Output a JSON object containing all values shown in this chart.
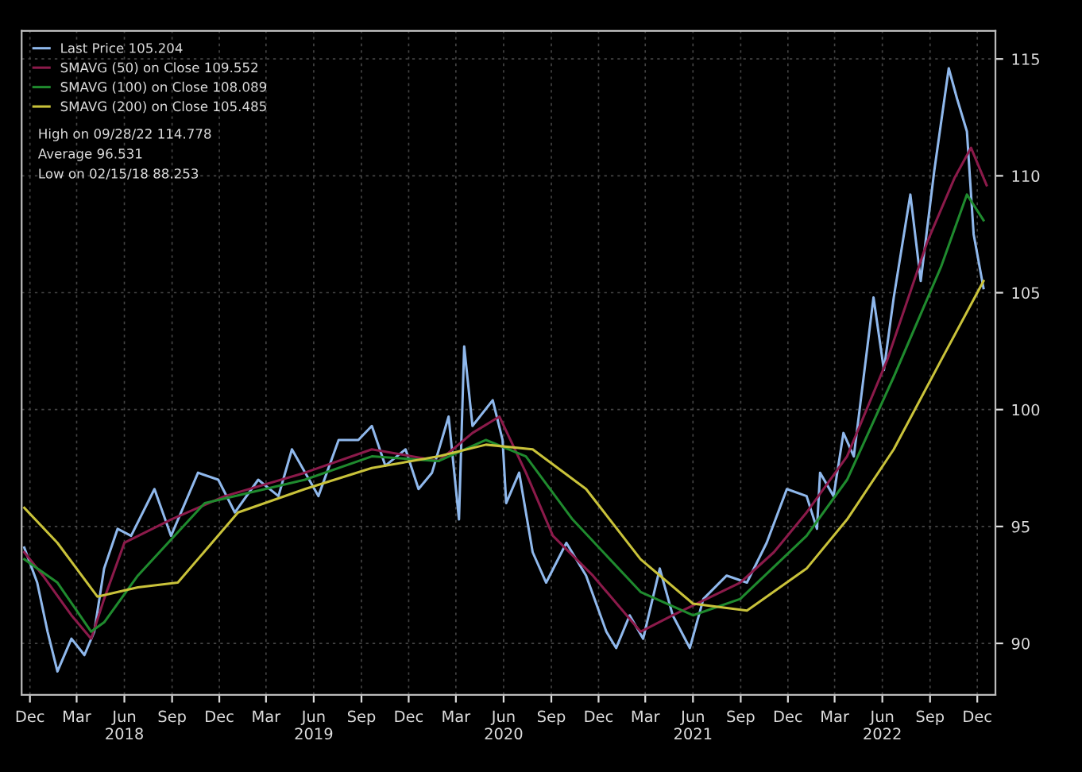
{
  "chart_data": {
    "type": "line",
    "series": [
      {
        "name": "Last Price 105.204",
        "color": "#8fb8ec",
        "x": [
          "2017-11-20",
          "2017-12-15",
          "2018-01-04",
          "2018-01-23",
          "2018-02-19",
          "2018-03-16",
          "2018-04-04",
          "2018-04-23",
          "2018-05-19",
          "2018-06-14",
          "2018-07-29",
          "2018-08-30",
          "2018-10-21",
          "2018-11-29",
          "2018-12-31",
          "2019-02-14",
          "2019-03-25",
          "2019-04-20",
          "2019-06-10",
          "2019-07-19",
          "2019-08-26",
          "2019-09-21",
          "2019-10-17",
          "2019-11-25",
          "2019-12-20",
          "2020-01-15",
          "2020-02-16",
          "2020-03-07",
          "2020-03-17",
          "2020-04-02",
          "2020-05-11",
          "2020-05-30",
          "2020-06-06",
          "2020-07-01",
          "2020-07-27",
          "2020-08-22",
          "2020-09-30",
          "2020-11-07",
          "2020-12-16",
          "2021-01-04",
          "2021-01-30",
          "2021-02-25",
          "2021-03-29",
          "2021-04-23",
          "2021-05-26",
          "2021-06-21",
          "2021-08-05",
          "2021-09-13",
          "2021-10-21",
          "2021-11-29",
          "2022-01-06",
          "2022-01-26",
          "2022-02-01",
          "2022-02-27",
          "2022-03-18",
          "2022-04-07",
          "2022-05-15",
          "2022-06-04",
          "2022-06-23",
          "2022-07-25",
          "2022-08-14",
          "2022-09-09",
          "2022-10-07",
          "2022-10-23",
          "2022-11-11",
          "2022-11-24",
          "2022-12-13"
        ],
        "values": [
          94.1,
          92.6,
          90.5,
          88.8,
          90.2,
          89.5,
          90.5,
          93.2,
          94.9,
          94.6,
          96.6,
          94.6,
          97.3,
          97.0,
          95.6,
          97.0,
          96.3,
          98.3,
          96.3,
          98.7,
          98.7,
          99.3,
          97.6,
          98.3,
          96.6,
          97.3,
          99.7,
          95.3,
          102.7,
          99.3,
          100.4,
          98.7,
          96.0,
          97.3,
          93.9,
          92.6,
          94.3,
          92.9,
          90.5,
          89.8,
          91.2,
          90.2,
          93.2,
          91.2,
          89.8,
          91.9,
          92.9,
          92.6,
          94.3,
          96.6,
          96.3,
          94.9,
          97.3,
          96.3,
          99.0,
          98.0,
          104.8,
          101.7,
          104.8,
          109.2,
          105.5,
          110.2,
          114.6,
          113.3,
          111.9,
          107.5,
          105.2
        ]
      },
      {
        "name": "SMAVG (50) on Close 109.552",
        "color": "#8b1a4a",
        "x": [
          "2017-11-20",
          "2017-12-26",
          "2018-02-19",
          "2018-03-29",
          "2018-04-23",
          "2018-06-01",
          "2018-08-30",
          "2018-12-12",
          "2019-05-15",
          "2019-09-21",
          "2020-01-28",
          "2020-04-02",
          "2020-05-24",
          "2020-07-14",
          "2020-09-04",
          "2020-11-20",
          "2021-02-20",
          "2021-04-23",
          "2021-06-27",
          "2021-08-31",
          "2021-11-04",
          "2022-01-06",
          "2022-03-25",
          "2022-06-10",
          "2022-08-27",
          "2022-10-18",
          "2022-11-19",
          "2022-12-19"
        ],
        "values": [
          93.9,
          92.9,
          91.2,
          90.2,
          91.9,
          94.3,
          95.3,
          96.3,
          97.3,
          98.3,
          97.8,
          99.0,
          99.7,
          97.3,
          94.6,
          92.9,
          90.5,
          91.2,
          91.9,
          92.6,
          93.9,
          95.6,
          98.0,
          102.1,
          107.2,
          109.9,
          111.2,
          109.6
        ]
      },
      {
        "name": "SMAVG (100) on Close 108.089",
        "color": "#1f8a2e",
        "x": [
          "2017-11-20",
          "2018-01-23",
          "2018-03-29",
          "2018-04-23",
          "2018-06-27",
          "2018-11-03",
          "2019-05-15",
          "2019-09-21",
          "2020-01-28",
          "2020-04-28",
          "2020-07-14",
          "2020-10-12",
          "2021-02-20",
          "2021-06-01",
          "2021-08-31",
          "2022-01-06",
          "2022-03-25",
          "2022-06-23",
          "2022-09-22",
          "2022-11-11",
          "2022-12-13"
        ],
        "values": [
          93.6,
          92.6,
          90.5,
          90.9,
          92.9,
          96.0,
          97.0,
          98.0,
          97.8,
          98.7,
          98.0,
          95.3,
          92.2,
          91.2,
          91.9,
          94.6,
          97.0,
          101.4,
          106.1,
          109.2,
          108.1
        ]
      },
      {
        "name": "SMAVG (200) on Close 105.485",
        "color": "#c9c23a",
        "x": [
          "2017-11-20",
          "2018-01-23",
          "2018-04-10",
          "2018-06-27",
          "2018-09-12",
          "2019-01-06",
          "2019-05-15",
          "2019-09-21",
          "2020-01-28",
          "2020-04-28",
          "2020-07-27",
          "2020-11-07",
          "2021-02-20",
          "2021-06-01",
          "2021-09-13",
          "2022-01-06",
          "2022-03-25",
          "2022-06-23",
          "2022-09-22",
          "2022-12-13"
        ],
        "values": [
          95.8,
          94.3,
          92.0,
          92.4,
          92.6,
          95.6,
          96.6,
          97.5,
          98.0,
          98.5,
          98.3,
          96.6,
          93.6,
          91.7,
          91.4,
          93.2,
          95.3,
          98.3,
          102.1,
          105.5
        ]
      }
    ],
    "annotations": [
      "High on 09/28/22 114.778",
      "Average 96.531",
      "Low on 02/15/18 88.253"
    ],
    "xlim": [
      "2017-11-15",
      "2023-01-05"
    ],
    "xticks": [
      {
        "value": "2017-12-01",
        "label": "Dec"
      },
      {
        "value": "2018-03-01",
        "label": "Mar"
      },
      {
        "value": "2018-06-01",
        "label": "Jun\n2018"
      },
      {
        "value": "2018-09-01",
        "label": "Sep"
      },
      {
        "value": "2018-12-01",
        "label": "Dec"
      },
      {
        "value": "2019-03-01",
        "label": "Mar"
      },
      {
        "value": "2019-06-01",
        "label": "Jun\n2019"
      },
      {
        "value": "2019-09-01",
        "label": "Sep"
      },
      {
        "value": "2019-12-01",
        "label": "Dec"
      },
      {
        "value": "2020-03-01",
        "label": "Mar"
      },
      {
        "value": "2020-06-01",
        "label": "Jun\n2020"
      },
      {
        "value": "2020-09-01",
        "label": "Sep"
      },
      {
        "value": "2020-12-01",
        "label": "Dec"
      },
      {
        "value": "2021-03-01",
        "label": "Mar"
      },
      {
        "value": "2021-06-01",
        "label": "Jun\n2021"
      },
      {
        "value": "2021-09-01",
        "label": "Sep"
      },
      {
        "value": "2021-12-01",
        "label": "Dec"
      },
      {
        "value": "2022-03-01",
        "label": "Mar"
      },
      {
        "value": "2022-06-01",
        "label": "Jun\n2022"
      },
      {
        "value": "2022-09-01",
        "label": "Sep"
      },
      {
        "value": "2022-12-01",
        "label": "Dec"
      }
    ],
    "ylim": [
      87.8,
      116.2
    ],
    "yticks": [
      90,
      95,
      100,
      105,
      110,
      115
    ],
    "grid": true,
    "legend": "top left"
  }
}
